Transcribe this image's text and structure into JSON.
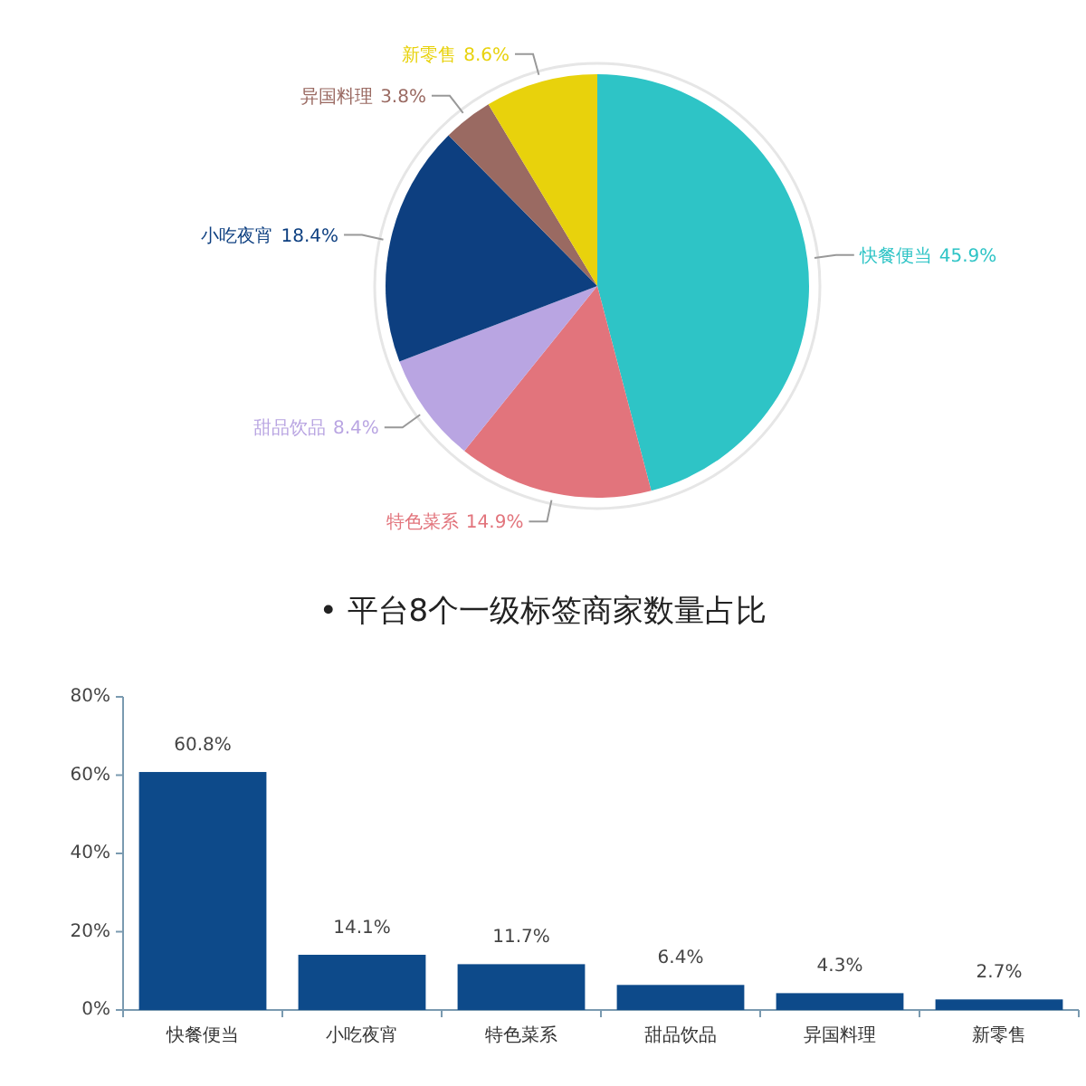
{
  "chart_data": [
    {
      "type": "pie",
      "categories": [
        "快餐便当",
        "特色菜系",
        "甜品饮品",
        "小吃夜宵",
        "异国料理",
        "新零售"
      ],
      "values": [
        45.9,
        14.9,
        8.4,
        18.4,
        3.8,
        8.6
      ],
      "colors": [
        "#2ec4c6",
        "#e2747c",
        "#b9a5e2",
        "#0d3f80",
        "#9a6a62",
        "#e8d20c"
      ],
      "value_labels": [
        "45.9%",
        "14.9%",
        "8.4%",
        "18.4%",
        "3.8%",
        "8.6%"
      ]
    },
    {
      "type": "bar",
      "title": "• 平台8个一级标签商家数量占比",
      "categories": [
        "快餐便当",
        "小吃夜宵",
        "特色菜系",
        "甜品饮品",
        "异国料理",
        "新零售"
      ],
      "values": [
        60.8,
        14.1,
        11.7,
        6.4,
        4.3,
        2.7
      ],
      "color": "#0d4a8a",
      "value_labels": [
        "60.8%",
        "14.1%",
        "11.7%",
        "6.4%",
        "4.3%",
        "2.7%"
      ],
      "ylim": [
        0,
        80
      ],
      "yticks": [
        {
          "value": 0,
          "label": "0%"
        },
        {
          "value": 20,
          "label": "20%"
        },
        {
          "value": 40,
          "label": "40%"
        },
        {
          "value": 60,
          "label": "60%"
        },
        {
          "value": 80,
          "label": "80%"
        }
      ]
    }
  ]
}
